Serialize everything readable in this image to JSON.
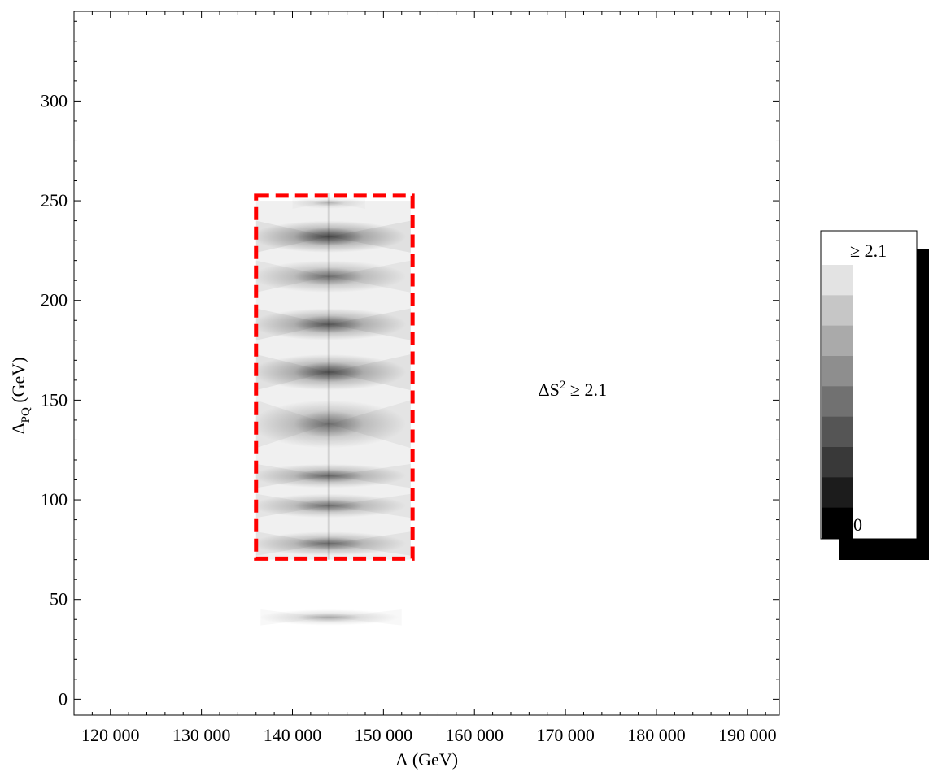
{
  "chart_data": {
    "type": "heatmap",
    "xlabel": "Λ (GeV)",
    "ylabel_main": "Δ",
    "ylabel_sub": "PQ",
    "ylabel_unit": " (GeV)",
    "xlim": [
      116000,
      193500
    ],
    "ylim": [
      -8,
      345
    ],
    "x_ticks": [
      {
        "value": 120000,
        "label": "120 000"
      },
      {
        "value": 130000,
        "label": "130 000"
      },
      {
        "value": 140000,
        "label": "140 000"
      },
      {
        "value": 150000,
        "label": "150 000"
      },
      {
        "value": 160000,
        "label": "160 000"
      },
      {
        "value": 170000,
        "label": "170 000"
      },
      {
        "value": 180000,
        "label": "180 000"
      },
      {
        "value": 190000,
        "label": "190 000"
      }
    ],
    "y_ticks": [
      {
        "value": 0,
        "label": "0"
      },
      {
        "value": 50,
        "label": "50"
      },
      {
        "value": 100,
        "label": "100"
      },
      {
        "value": 150,
        "label": "150"
      },
      {
        "value": 200,
        "label": "200"
      },
      {
        "value": 250,
        "label": "250"
      },
      {
        "value": 300,
        "label": "300"
      }
    ],
    "bands": [
      {
        "y": 41,
        "x_min": 136500,
        "x_max": 152000,
        "height": 8,
        "shade": 0.35
      },
      {
        "y": 78,
        "x_min": 136000,
        "x_max": 153000,
        "height": 12,
        "shade": 0.65
      },
      {
        "y": 97,
        "x_min": 136000,
        "x_max": 153000,
        "height": 12,
        "shade": 0.6
      },
      {
        "y": 112,
        "x_min": 136000,
        "x_max": 153000,
        "height": 12,
        "shade": 0.65
      },
      {
        "y": 138,
        "x_min": 136000,
        "x_max": 153000,
        "height": 24,
        "shade": 0.6
      },
      {
        "y": 164,
        "x_min": 136000,
        "x_max": 153000,
        "height": 18,
        "shade": 0.8
      },
      {
        "y": 188,
        "x_min": 136000,
        "x_max": 153000,
        "height": 16,
        "shade": 0.75
      },
      {
        "y": 212,
        "x_min": 136000,
        "x_max": 153000,
        "height": 16,
        "shade": 0.6
      },
      {
        "y": 232,
        "x_min": 136000,
        "x_max": 153000,
        "height": 16,
        "shade": 0.85
      },
      {
        "y": 249,
        "x_min": 140000,
        "x_max": 148000,
        "height": 6,
        "shade": 0.25
      }
    ],
    "center_x": 144000,
    "highlight_box": {
      "x_min": 136000,
      "x_max": 153200,
      "y_min": 70.5,
      "y_max": 252.5,
      "color": "#ff0000"
    },
    "annotation": {
      "text_main": "ΔS",
      "text_sup": "2",
      "text_rest": " ≥ 2.1",
      "x": 167000,
      "y": 155
    },
    "legend": {
      "top_label": "≥ 2.1",
      "bottom_label": "0",
      "colors": [
        "#e3e3e3",
        "#c6c6c6",
        "#aaaaaa",
        "#8e8e8e",
        "#717171",
        "#555555",
        "#393939",
        "#1c1c1c",
        "#000000"
      ]
    }
  }
}
